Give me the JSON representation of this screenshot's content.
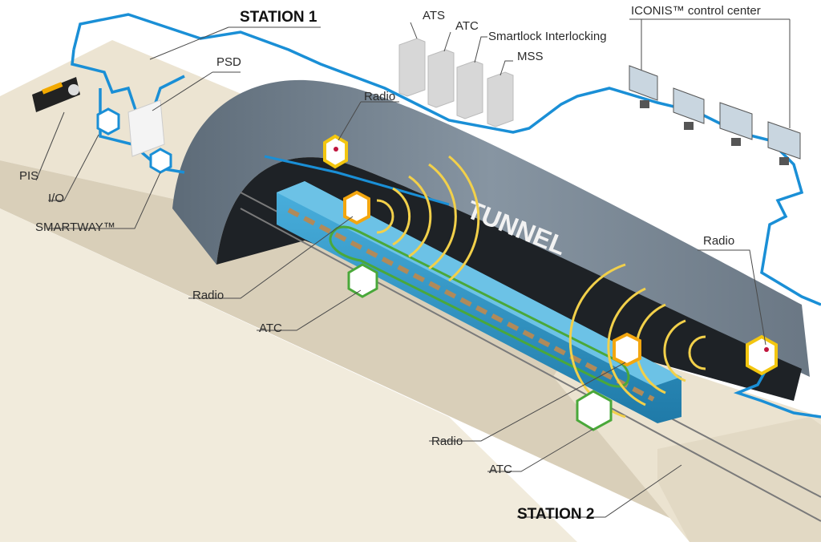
{
  "labels": {
    "station1": "STATION 1",
    "station2": "STATION 2",
    "tunnel": "TUNNEL",
    "pis": "PIS",
    "io": "I/O",
    "smartway": "SMARTWAY™",
    "psd": "PSD",
    "ats": "ATS",
    "atc_top": "ATC",
    "smartlock": "Smartlock Interlocking",
    "mss": "MSS",
    "iconis": "ICONIS™ control center",
    "radio_top": "Radio",
    "radio_left": "Radio",
    "atc_left": "ATC",
    "radio_bottom": "Radio",
    "atc_bottom": "ATC",
    "radio_right": "Radio"
  },
  "colors": {
    "network": "#1a8fd6",
    "radio": "#f3a60f",
    "radio_waves": "#f2d04a",
    "atc": "#4aa83a",
    "tunnel": "#6f7e8c",
    "platform": "#e5dcc8",
    "train": "#2c8fc0"
  }
}
